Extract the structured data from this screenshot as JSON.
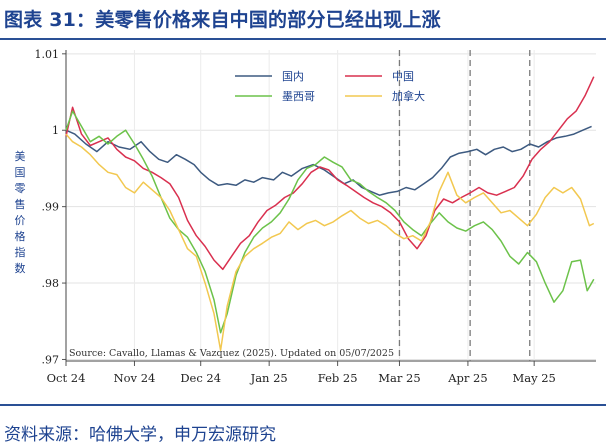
{
  "header": {
    "title": "图表 31：美零售价格来自中国的部分已经出现上涨"
  },
  "footer": {
    "source": "资料来源：哈佛大学，申万宏源研究"
  },
  "colors": {
    "domestic": "#3d5a80",
    "china": "#d9304f",
    "mexico": "#6cc24a",
    "canada": "#f2c850",
    "title": "#1e4390",
    "rule": "#2a5095"
  },
  "chart_data": {
    "type": "line",
    "title": "",
    "ylabel": "美国零售价格指数",
    "xlabel": "",
    "annotation": "Source: Cavallo, Llamas & Vazquez (2025). Updated on 05/07/2025",
    "ylim": [
      0.9698,
      1.0105
    ],
    "yticks": [
      0.97,
      0.98,
      0.99,
      1,
      1.01
    ],
    "ytick_labels": [
      ".97",
      ".98",
      ".99",
      "1",
      "1.01"
    ],
    "x_start": "2024-10-01",
    "x_end": "2025-05-29",
    "xticks": [
      {
        "date": "2024-10-01",
        "label": "Oct 24"
      },
      {
        "date": "2024-11-01",
        "label": "Nov 24"
      },
      {
        "date": "2024-12-01",
        "label": "Dec 24"
      },
      {
        "date": "2025-01-01",
        "label": "Jan 25"
      },
      {
        "date": "2025-02-01",
        "label": "Feb 25"
      },
      {
        "date": "2025-03-01",
        "label": "Mar 25"
      },
      {
        "date": "2025-04-01",
        "label": "Apr 25"
      },
      {
        "date": "2025-05-01",
        "label": "May 25"
      }
    ],
    "vlines": [
      "2025-03-01",
      "2025-04-02",
      "2025-04-29"
    ],
    "grid": true,
    "legend_position": "top-center",
    "series": [
      {
        "name": "国内",
        "color": "#3d5a80",
        "points": [
          [
            "2024-10-01",
            1.0
          ],
          [
            "2024-10-05",
            0.9995
          ],
          [
            "2024-10-10",
            0.9982
          ],
          [
            "2024-10-15",
            0.9972
          ],
          [
            "2024-10-20",
            0.9985
          ],
          [
            "2024-10-25",
            0.9978
          ],
          [
            "2024-10-30",
            0.9975
          ],
          [
            "2024-11-04",
            0.9985
          ],
          [
            "2024-11-08",
            0.9972
          ],
          [
            "2024-11-12",
            0.9962
          ],
          [
            "2024-11-16",
            0.9958
          ],
          [
            "2024-11-20",
            0.9968
          ],
          [
            "2024-11-24",
            0.9962
          ],
          [
            "2024-11-28",
            0.9955
          ],
          [
            "2024-12-01",
            0.9945
          ],
          [
            "2024-12-05",
            0.9935
          ],
          [
            "2024-12-09",
            0.9928
          ],
          [
            "2024-12-13",
            0.993
          ],
          [
            "2024-12-17",
            0.9928
          ],
          [
            "2024-12-21",
            0.9935
          ],
          [
            "2024-12-25",
            0.9932
          ],
          [
            "2024-12-29",
            0.9938
          ],
          [
            "2025-01-03",
            0.9935
          ],
          [
            "2025-01-07",
            0.9945
          ],
          [
            "2025-01-11",
            0.994
          ],
          [
            "2025-01-16",
            0.995
          ],
          [
            "2025-01-21",
            0.9955
          ],
          [
            "2025-01-26",
            0.9948
          ],
          [
            "2025-01-31",
            0.9938
          ],
          [
            "2025-02-04",
            0.993
          ],
          [
            "2025-02-08",
            0.9935
          ],
          [
            "2025-02-12",
            0.9925
          ],
          [
            "2025-02-16",
            0.992
          ],
          [
            "2025-02-20",
            0.9915
          ],
          [
            "2025-02-24",
            0.9918
          ],
          [
            "2025-02-28",
            0.992
          ],
          [
            "2025-03-04",
            0.9925
          ],
          [
            "2025-03-08",
            0.9922
          ],
          [
            "2025-03-12",
            0.993
          ],
          [
            "2025-03-16",
            0.9938
          ],
          [
            "2025-03-20",
            0.995
          ],
          [
            "2025-03-24",
            0.9965
          ],
          [
            "2025-03-28",
            0.997
          ],
          [
            "2025-04-01",
            0.9972
          ],
          [
            "2025-04-05",
            0.9975
          ],
          [
            "2025-04-09",
            0.9968
          ],
          [
            "2025-04-13",
            0.9975
          ],
          [
            "2025-04-17",
            0.9978
          ],
          [
            "2025-04-21",
            0.9972
          ],
          [
            "2025-04-25",
            0.9975
          ],
          [
            "2025-04-29",
            0.9982
          ],
          [
            "2025-05-03",
            0.9978
          ],
          [
            "2025-05-07",
            0.9985
          ],
          [
            "2025-05-11",
            0.999
          ],
          [
            "2025-05-15",
            0.9992
          ],
          [
            "2025-05-19",
            0.9995
          ],
          [
            "2025-05-23",
            1.0
          ],
          [
            "2025-05-27",
            1.0005
          ]
        ]
      },
      {
        "name": "中国",
        "color": "#d9304f",
        "points": [
          [
            "2024-10-01",
            0.9992
          ],
          [
            "2024-10-04",
            1.003
          ],
          [
            "2024-10-08",
            0.9995
          ],
          [
            "2024-10-12",
            0.998
          ],
          [
            "2024-10-16",
            0.9985
          ],
          [
            "2024-10-20",
            0.999
          ],
          [
            "2024-10-24",
            0.9975
          ],
          [
            "2024-10-28",
            0.9965
          ],
          [
            "2024-11-01",
            0.996
          ],
          [
            "2024-11-05",
            0.995
          ],
          [
            "2024-11-09",
            0.9945
          ],
          [
            "2024-11-13",
            0.9938
          ],
          [
            "2024-11-17",
            0.993
          ],
          [
            "2024-11-21",
            0.9912
          ],
          [
            "2024-11-25",
            0.9882
          ],
          [
            "2024-11-29",
            0.9862
          ],
          [
            "2024-12-03",
            0.9848
          ],
          [
            "2024-12-07",
            0.983
          ],
          [
            "2024-12-11",
            0.9818
          ],
          [
            "2024-12-15",
            0.9835
          ],
          [
            "2024-12-19",
            0.9852
          ],
          [
            "2024-12-23",
            0.9862
          ],
          [
            "2024-12-27",
            0.988
          ],
          [
            "2024-12-31",
            0.9895
          ],
          [
            "2025-01-04",
            0.9902
          ],
          [
            "2025-01-08",
            0.9912
          ],
          [
            "2025-01-12",
            0.9918
          ],
          [
            "2025-01-16",
            0.993
          ],
          [
            "2025-01-20",
            0.9945
          ],
          [
            "2025-01-24",
            0.9952
          ],
          [
            "2025-01-28",
            0.9948
          ],
          [
            "2025-02-01",
            0.9935
          ],
          [
            "2025-02-05",
            0.9928
          ],
          [
            "2025-02-09",
            0.992
          ],
          [
            "2025-02-13",
            0.9912
          ],
          [
            "2025-02-17",
            0.9905
          ],
          [
            "2025-02-21",
            0.99
          ],
          [
            "2025-02-25",
            0.9892
          ],
          [
            "2025-03-01",
            0.988
          ],
          [
            "2025-03-05",
            0.9858
          ],
          [
            "2025-03-09",
            0.9845
          ],
          [
            "2025-03-13",
            0.9862
          ],
          [
            "2025-03-17",
            0.9895
          ],
          [
            "2025-03-21",
            0.991
          ],
          [
            "2025-03-25",
            0.9905
          ],
          [
            "2025-03-29",
            0.9912
          ],
          [
            "2025-04-02",
            0.9918
          ],
          [
            "2025-04-06",
            0.9925
          ],
          [
            "2025-04-10",
            0.9918
          ],
          [
            "2025-04-14",
            0.9915
          ],
          [
            "2025-04-18",
            0.992
          ],
          [
            "2025-04-22",
            0.9925
          ],
          [
            "2025-04-26",
            0.994
          ],
          [
            "2025-04-30",
            0.9962
          ],
          [
            "2025-05-04",
            0.9975
          ],
          [
            "2025-05-08",
            0.9985
          ],
          [
            "2025-05-12",
            1.0
          ],
          [
            "2025-05-16",
            1.0015
          ],
          [
            "2025-05-20",
            1.0025
          ],
          [
            "2025-05-24",
            1.0045
          ],
          [
            "2025-05-28",
            1.007
          ]
        ]
      },
      {
        "name": "墨西哥",
        "color": "#6cc24a",
        "points": [
          [
            "2024-10-01",
            1.0
          ],
          [
            "2024-10-04",
            1.0025
          ],
          [
            "2024-10-08",
            1.0005
          ],
          [
            "2024-10-12",
            0.9985
          ],
          [
            "2024-10-16",
            0.9992
          ],
          [
            "2024-10-20",
            0.9982
          ],
          [
            "2024-10-24",
            0.9992
          ],
          [
            "2024-10-28",
            1.0
          ],
          [
            "2024-11-01",
            0.9982
          ],
          [
            "2024-11-05",
            0.9962
          ],
          [
            "2024-11-09",
            0.994
          ],
          [
            "2024-11-13",
            0.9912
          ],
          [
            "2024-11-17",
            0.9885
          ],
          [
            "2024-11-21",
            0.987
          ],
          [
            "2024-11-25",
            0.986
          ],
          [
            "2024-11-29",
            0.984
          ],
          [
            "2024-12-03",
            0.9815
          ],
          [
            "2024-12-07",
            0.9778
          ],
          [
            "2024-12-10",
            0.9735
          ],
          [
            "2024-12-13",
            0.976
          ],
          [
            "2024-12-17",
            0.981
          ],
          [
            "2024-12-21",
            0.984
          ],
          [
            "2024-12-25",
            0.986
          ],
          [
            "2024-12-29",
            0.9872
          ],
          [
            "2025-01-02",
            0.988
          ],
          [
            "2025-01-06",
            0.9892
          ],
          [
            "2025-01-10",
            0.991
          ],
          [
            "2025-01-14",
            0.9935
          ],
          [
            "2025-01-18",
            0.995
          ],
          [
            "2025-01-22",
            0.9955
          ],
          [
            "2025-01-26",
            0.9965
          ],
          [
            "2025-01-30",
            0.9958
          ],
          [
            "2025-02-03",
            0.9952
          ],
          [
            "2025-02-07",
            0.9935
          ],
          [
            "2025-02-11",
            0.993
          ],
          [
            "2025-02-15",
            0.992
          ],
          [
            "2025-02-19",
            0.9912
          ],
          [
            "2025-02-23",
            0.9905
          ],
          [
            "2025-02-27",
            0.9895
          ],
          [
            "2025-03-03",
            0.988
          ],
          [
            "2025-03-07",
            0.987
          ],
          [
            "2025-03-11",
            0.9862
          ],
          [
            "2025-03-15",
            0.9878
          ],
          [
            "2025-03-19",
            0.9892
          ],
          [
            "2025-03-23",
            0.988
          ],
          [
            "2025-03-27",
            0.9872
          ],
          [
            "2025-03-31",
            0.9868
          ],
          [
            "2025-04-04",
            0.9875
          ],
          [
            "2025-04-08",
            0.988
          ],
          [
            "2025-04-12",
            0.987
          ],
          [
            "2025-04-16",
            0.9855
          ],
          [
            "2025-04-20",
            0.9835
          ],
          [
            "2025-04-24",
            0.9825
          ],
          [
            "2025-04-28",
            0.984
          ],
          [
            "2025-05-02",
            0.9828
          ],
          [
            "2025-05-06",
            0.98
          ],
          [
            "2025-05-10",
            0.9775
          ],
          [
            "2025-05-14",
            0.979
          ],
          [
            "2025-05-18",
            0.9828
          ],
          [
            "2025-05-22",
            0.983
          ],
          [
            "2025-05-25",
            0.979
          ],
          [
            "2025-05-28",
            0.9805
          ]
        ]
      },
      {
        "name": "加拿大",
        "color": "#f2c850",
        "points": [
          [
            "2024-10-01",
            0.9995
          ],
          [
            "2024-10-04",
            0.9985
          ],
          [
            "2024-10-08",
            0.9978
          ],
          [
            "2024-10-12",
            0.9968
          ],
          [
            "2024-10-16",
            0.9955
          ],
          [
            "2024-10-20",
            0.9945
          ],
          [
            "2024-10-24",
            0.9942
          ],
          [
            "2024-10-28",
            0.9925
          ],
          [
            "2024-11-01",
            0.9918
          ],
          [
            "2024-11-05",
            0.9932
          ],
          [
            "2024-11-09",
            0.9922
          ],
          [
            "2024-11-13",
            0.9912
          ],
          [
            "2024-11-17",
            0.9895
          ],
          [
            "2024-11-21",
            0.987
          ],
          [
            "2024-11-25",
            0.9845
          ],
          [
            "2024-11-29",
            0.9835
          ],
          [
            "2024-12-03",
            0.98
          ],
          [
            "2024-12-07",
            0.976
          ],
          [
            "2024-12-10",
            0.9712
          ],
          [
            "2024-12-13",
            0.977
          ],
          [
            "2024-12-17",
            0.9815
          ],
          [
            "2024-12-21",
            0.9835
          ],
          [
            "2024-12-25",
            0.9845
          ],
          [
            "2024-12-29",
            0.9852
          ],
          [
            "2025-01-02",
            0.986
          ],
          [
            "2025-01-06",
            0.9865
          ],
          [
            "2025-01-10",
            0.988
          ],
          [
            "2025-01-14",
            0.987
          ],
          [
            "2025-01-18",
            0.9878
          ],
          [
            "2025-01-22",
            0.9882
          ],
          [
            "2025-01-26",
            0.9875
          ],
          [
            "2025-01-30",
            0.988
          ],
          [
            "2025-02-03",
            0.9888
          ],
          [
            "2025-02-07",
            0.9895
          ],
          [
            "2025-02-11",
            0.9885
          ],
          [
            "2025-02-15",
            0.9878
          ],
          [
            "2025-02-19",
            0.9882
          ],
          [
            "2025-02-23",
            0.9875
          ],
          [
            "2025-02-27",
            0.9865
          ],
          [
            "2025-03-03",
            0.9858
          ],
          [
            "2025-03-07",
            0.9862
          ],
          [
            "2025-03-11",
            0.9855
          ],
          [
            "2025-03-15",
            0.988
          ],
          [
            "2025-03-19",
            0.992
          ],
          [
            "2025-03-23",
            0.9945
          ],
          [
            "2025-03-27",
            0.9915
          ],
          [
            "2025-03-31",
            0.9905
          ],
          [
            "2025-04-04",
            0.9912
          ],
          [
            "2025-04-08",
            0.9918
          ],
          [
            "2025-04-12",
            0.9905
          ],
          [
            "2025-04-16",
            0.9892
          ],
          [
            "2025-04-20",
            0.9895
          ],
          [
            "2025-04-24",
            0.9885
          ],
          [
            "2025-04-28",
            0.9875
          ],
          [
            "2025-05-02",
            0.989
          ],
          [
            "2025-05-06",
            0.9912
          ],
          [
            "2025-05-10",
            0.9925
          ],
          [
            "2025-05-14",
            0.9918
          ],
          [
            "2025-05-18",
            0.9925
          ],
          [
            "2025-05-22",
            0.991
          ],
          [
            "2025-05-26",
            0.9875
          ],
          [
            "2025-05-28",
            0.9878
          ]
        ]
      }
    ]
  }
}
